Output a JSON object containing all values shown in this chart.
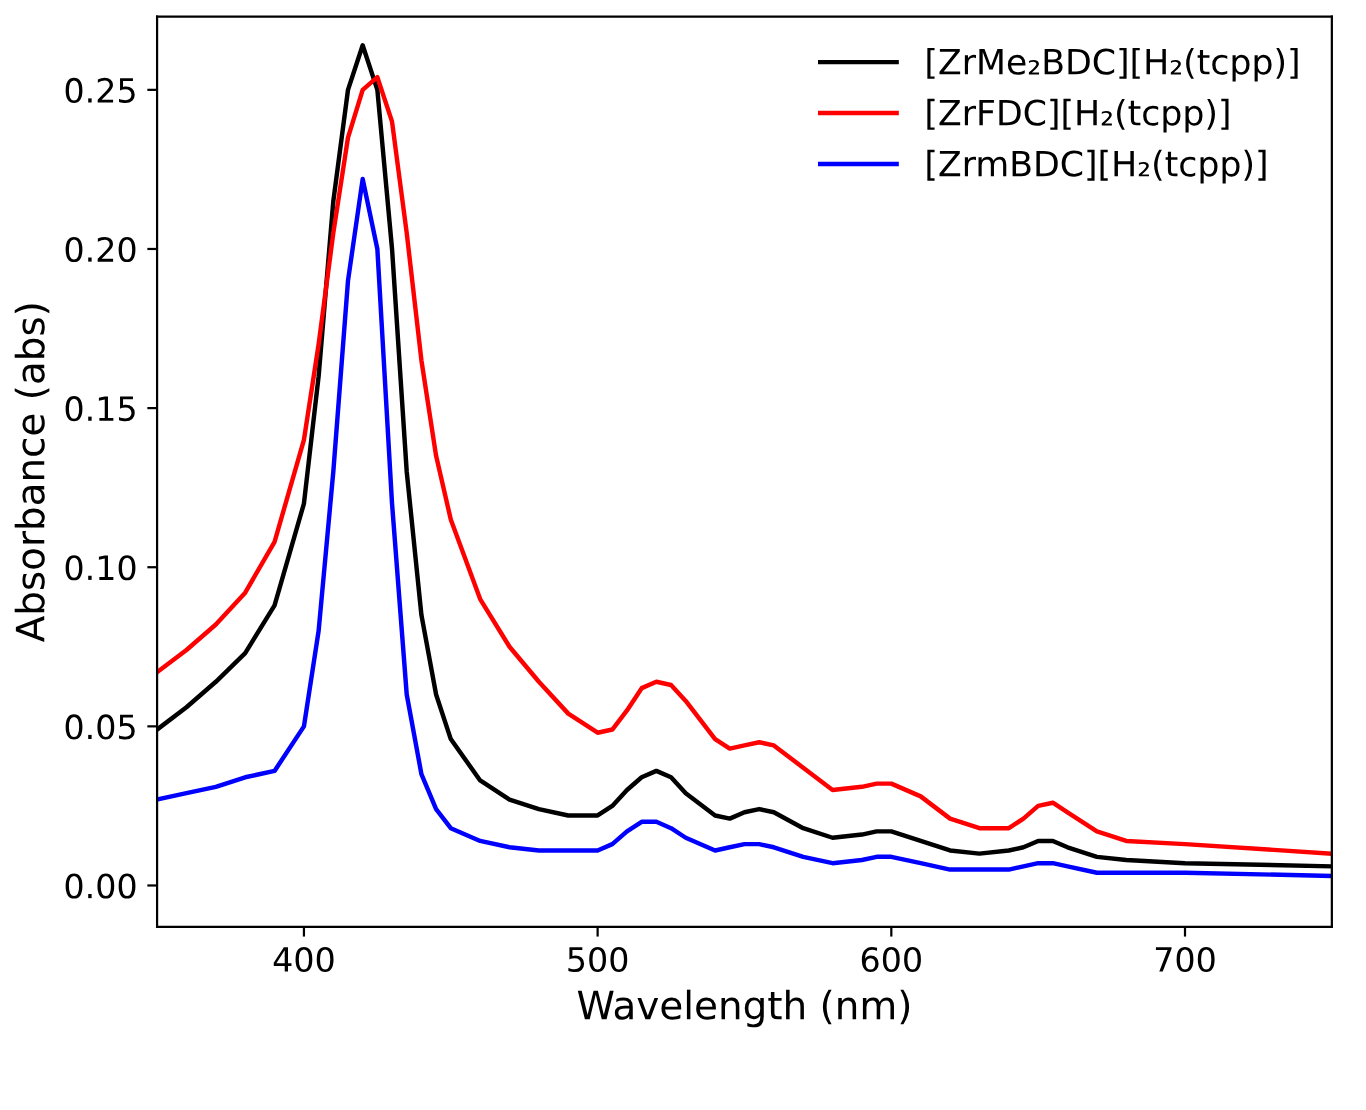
{
  "chart_data": {
    "type": "line",
    "xlabel": "Wavelength (nm)",
    "ylabel": "Absorbance (abs)",
    "x": [
      350,
      360,
      370,
      380,
      390,
      400,
      405,
      410,
      415,
      420,
      425,
      430,
      435,
      440,
      445,
      450,
      460,
      470,
      480,
      490,
      500,
      505,
      510,
      515,
      520,
      525,
      530,
      540,
      545,
      550,
      555,
      560,
      570,
      580,
      590,
      595,
      600,
      610,
      620,
      630,
      640,
      645,
      650,
      655,
      660,
      670,
      680,
      700,
      750
    ],
    "series": [
      {
        "name": "[ZrMe₂BDC][H₂(tcpp)]",
        "color": "#000000",
        "values": [
          0.049,
          0.056,
          0.064,
          0.073,
          0.088,
          0.12,
          0.16,
          0.215,
          0.25,
          0.264,
          0.25,
          0.2,
          0.13,
          0.085,
          0.06,
          0.046,
          0.033,
          0.027,
          0.024,
          0.022,
          0.022,
          0.025,
          0.03,
          0.034,
          0.036,
          0.034,
          0.029,
          0.022,
          0.021,
          0.023,
          0.024,
          0.023,
          0.018,
          0.015,
          0.016,
          0.017,
          0.017,
          0.014,
          0.011,
          0.01,
          0.011,
          0.012,
          0.014,
          0.014,
          0.012,
          0.009,
          0.008,
          0.007,
          0.006
        ]
      },
      {
        "name": "[ZrFDC][H₂(tcpp)]",
        "color": "#ff0000",
        "values": [
          0.067,
          0.074,
          0.082,
          0.092,
          0.108,
          0.14,
          0.17,
          0.205,
          0.235,
          0.25,
          0.254,
          0.24,
          0.205,
          0.165,
          0.135,
          0.115,
          0.09,
          0.075,
          0.064,
          0.054,
          0.048,
          0.049,
          0.055,
          0.062,
          0.064,
          0.063,
          0.058,
          0.046,
          0.043,
          0.044,
          0.045,
          0.044,
          0.037,
          0.03,
          0.031,
          0.032,
          0.032,
          0.028,
          0.021,
          0.018,
          0.018,
          0.021,
          0.025,
          0.026,
          0.023,
          0.017,
          0.014,
          0.013,
          0.01
        ]
      },
      {
        "name": "[ZrmBDC][H₂(tcpp)]",
        "color": "#0000ff",
        "values": [
          0.027,
          0.029,
          0.031,
          0.034,
          0.036,
          0.05,
          0.08,
          0.13,
          0.19,
          0.222,
          0.2,
          0.12,
          0.06,
          0.035,
          0.024,
          0.018,
          0.014,
          0.012,
          0.011,
          0.011,
          0.011,
          0.013,
          0.017,
          0.02,
          0.02,
          0.018,
          0.015,
          0.011,
          0.012,
          0.013,
          0.013,
          0.012,
          0.009,
          0.007,
          0.008,
          0.009,
          0.009,
          0.007,
          0.005,
          0.005,
          0.005,
          0.006,
          0.007,
          0.007,
          0.006,
          0.004,
          0.004,
          0.004,
          0.003
        ]
      }
    ],
    "xlim": [
      350,
      750
    ],
    "xticks": [
      400,
      500,
      600,
      700
    ],
    "ylim": [
      -0.013,
      0.273
    ],
    "yticks": [
      {
        "value": 0,
        "label": "0.00"
      },
      {
        "value": 0.05,
        "label": "0.05"
      },
      {
        "value": 0.1,
        "label": "0.10"
      },
      {
        "value": 0.15,
        "label": "0.15"
      },
      {
        "value": 0.2,
        "label": "0.20"
      },
      {
        "value": 0.25,
        "label": "0.25"
      }
    ],
    "grid": false,
    "legend": "top right",
    "marker": "none",
    "line_style": "solid"
  }
}
